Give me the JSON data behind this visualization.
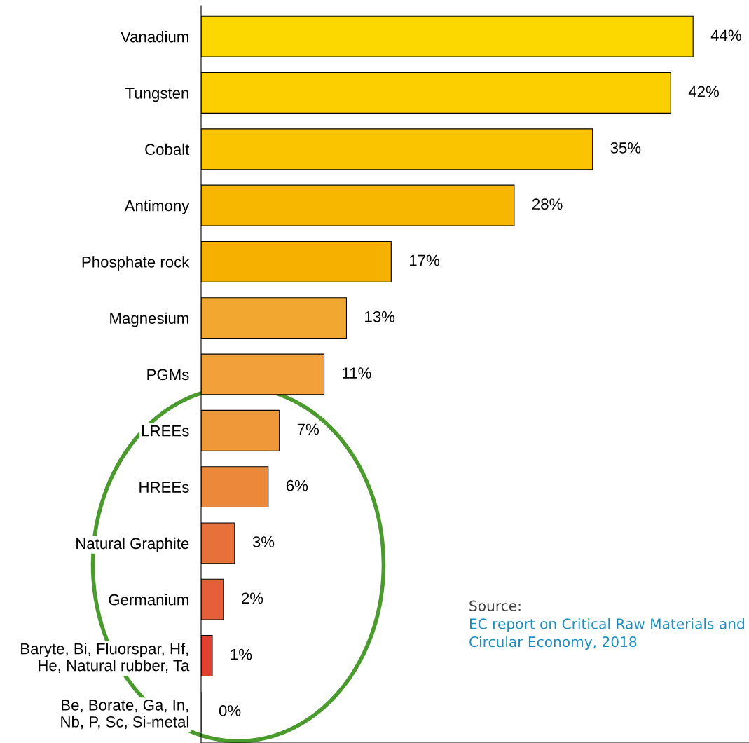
{
  "chart_data": {
    "type": "bar",
    "orientation": "horizontal",
    "categories": [
      "Vanadium",
      "Tungsten",
      "Cobalt",
      "Antimony",
      "Phosphate rock",
      "Magnesium",
      "PGMs",
      "LREEs",
      "HREEs",
      "Natural Graphite",
      "Germanium",
      "Baryte, Bi, Fluorspar, Hf,\nHe, Natural rubber, Ta",
      "Be, Borate, Ga, In,\nNb, P, Sc, Si-metal"
    ],
    "values": [
      44,
      42,
      35,
      28,
      17,
      13,
      11,
      7,
      6,
      3,
      2,
      1,
      0
    ],
    "value_labels": [
      "44%",
      "42%",
      "35%",
      "28%",
      "17%",
      "13%",
      "11%",
      "7%",
      "6%",
      "3%",
      "2%",
      "1%",
      "0%"
    ],
    "colors": [
      "#fdd800",
      "#fcd000",
      "#fbc400",
      "#f7b600",
      "#f6b000",
      "#f2a731",
      "#f2a13a",
      "#ee983a",
      "#ec883a",
      "#e8703a",
      "#e5603a",
      "#e04030",
      "#e04030"
    ],
    "xlim": [
      0,
      49
    ],
    "tick_labels": "y",
    "grid": false,
    "legend": false,
    "annotations": [
      "Source:",
      "EC report on Critical Raw Materials and Circular Economy, 2018"
    ]
  }
}
